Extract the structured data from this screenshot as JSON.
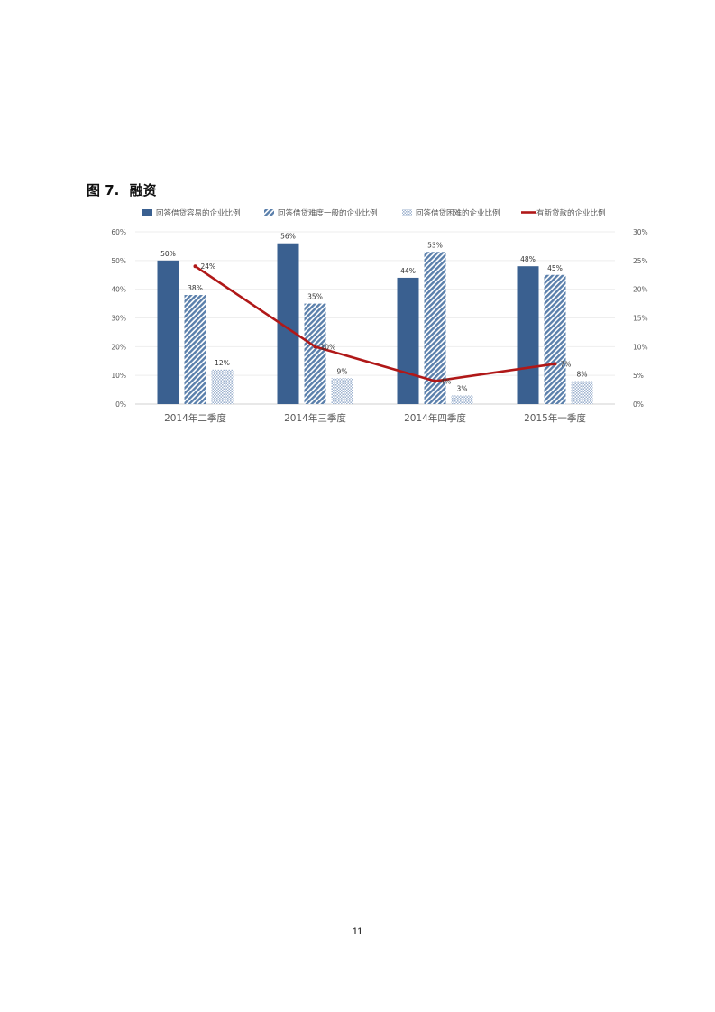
{
  "figure": {
    "label": "图 7.",
    "title": "融资"
  },
  "page_number": "11",
  "colors": {
    "easy": "#3a6090",
    "normal": "#7f9cbf",
    "hard": "#b8c8dc",
    "new_loans": "#b01818",
    "axis_text": "#595959",
    "grid": "#eeeeee"
  },
  "chart_data": {
    "type": "bar",
    "categories": [
      "2014年二季度",
      "2014年三季度",
      "2014年四季度",
      "2015年一季度"
    ],
    "series": [
      {
        "name": "回答借贷容易的企业比例",
        "type": "bar",
        "axis": "left",
        "values": [
          50,
          56,
          44,
          48
        ],
        "labels": [
          "50%",
          "56%",
          "44%",
          "48%"
        ]
      },
      {
        "name": "回答借贷难度一般的企业比例",
        "type": "bar",
        "axis": "left",
        "values": [
          38,
          35,
          53,
          45
        ],
        "labels": [
          "38%",
          "35%",
          "53%",
          "45%"
        ]
      },
      {
        "name": "回答借贷困难的企业比例",
        "type": "bar",
        "axis": "left",
        "values": [
          12,
          9,
          3,
          8
        ],
        "labels": [
          "12%",
          "9%",
          "3%",
          "8%"
        ]
      },
      {
        "name": "有新贷款的企业比例",
        "type": "line",
        "axis": "right",
        "values": [
          24,
          10,
          4,
          7
        ],
        "labels": [
          "24%",
          "10%",
          "4%",
          "7%"
        ]
      }
    ],
    "y_left": {
      "ylim": [
        0,
        60
      ],
      "ticks": [
        "0%",
        "10%",
        "20%",
        "30%",
        "40%",
        "50%",
        "60%"
      ]
    },
    "y_right": {
      "ylim": [
        0,
        30
      ],
      "ticks": [
        "0%",
        "5%",
        "10%",
        "15%",
        "20%",
        "25%",
        "30%"
      ]
    },
    "legend_position": "top",
    "grid": true
  }
}
